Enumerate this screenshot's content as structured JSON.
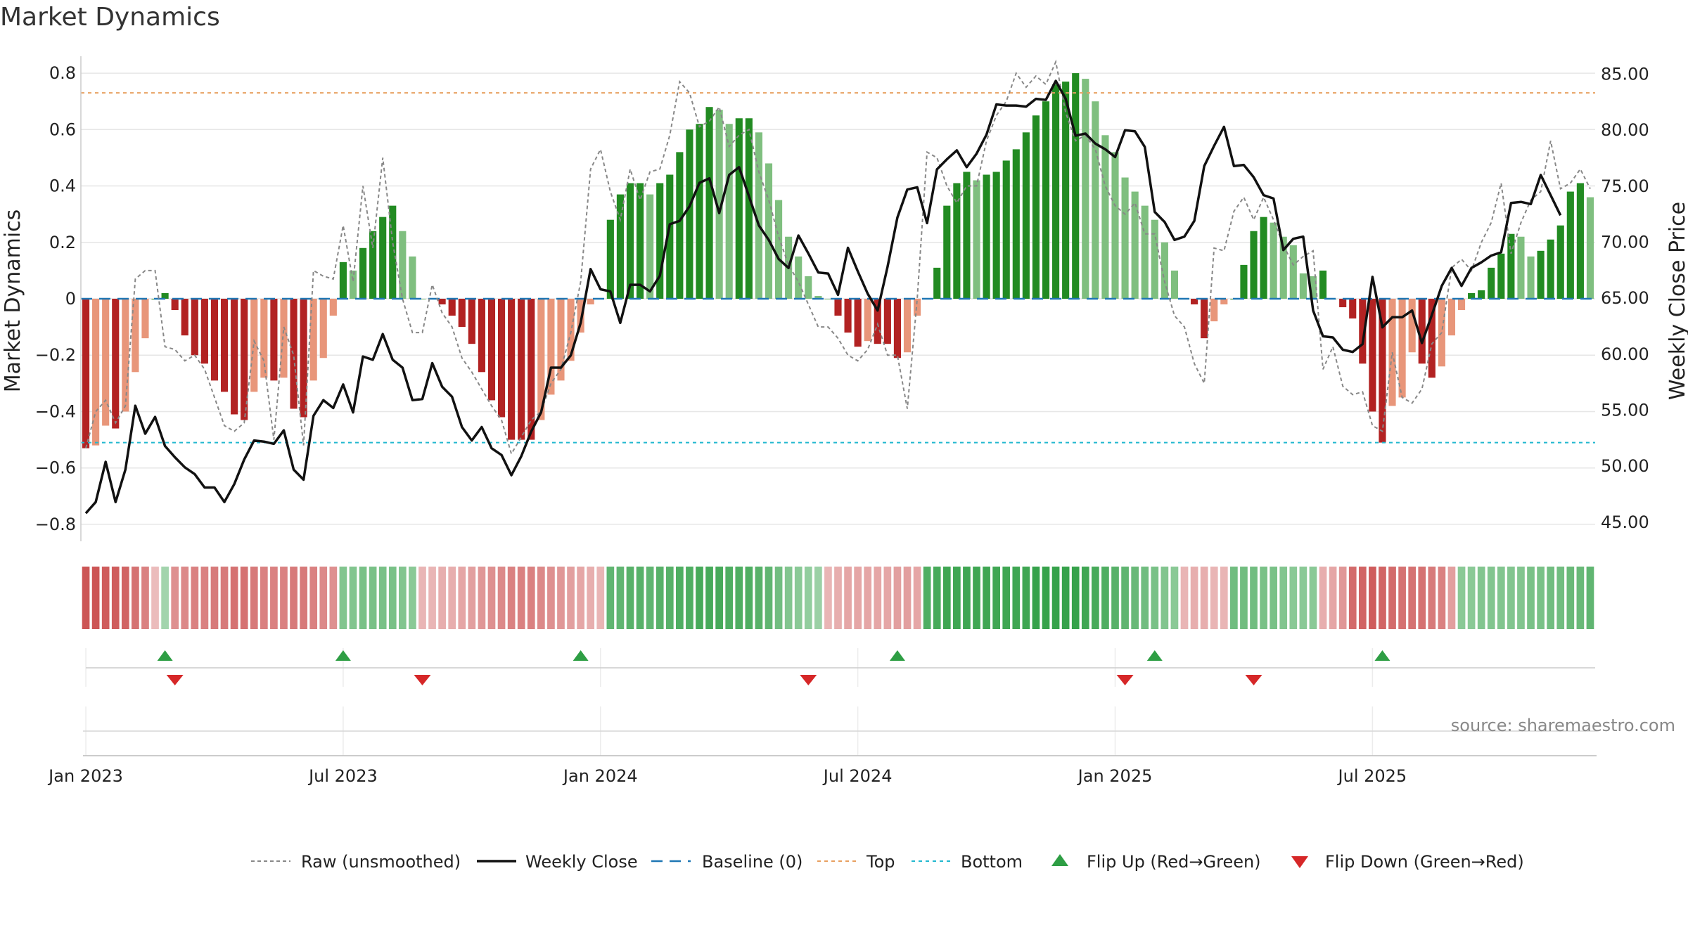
{
  "chart_data": {
    "type": "bar",
    "title": "Market Dynamics",
    "ylabel": "Market Dynamics",
    "y2label": "Weekly Close Price",
    "source": "source: sharemaestro.com",
    "ylim": [
      -0.86,
      0.86
    ],
    "y2lim": [
      43.3,
      86.6
    ],
    "yticks": [
      "0.8",
      "0.6",
      "0.4",
      "0.2",
      "0",
      "−0.2",
      "−0.4",
      "−0.6",
      "−0.8"
    ],
    "ytick_values": [
      0.8,
      0.6,
      0.4,
      0.2,
      0,
      -0.2,
      -0.4,
      -0.6,
      -0.8
    ],
    "y2ticks": [
      "85.00",
      "80.00",
      "75.00",
      "70.00",
      "65.00",
      "60.00",
      "55.00",
      "50.00",
      "45.00"
    ],
    "y2tick_values": [
      85,
      80,
      75,
      70,
      65,
      60,
      55,
      50,
      45
    ],
    "xticks": [
      "Jan 2023",
      "Jul 2023",
      "Jan 2024",
      "Jul 2024",
      "Jan 2025",
      "Jul 2025"
    ],
    "xtick_weeks": [
      1,
      27,
      53,
      79,
      105,
      131
    ],
    "top_line": 0.73,
    "bottom_line": -0.51,
    "grid": true,
    "legend_position": "bottom",
    "legend": [
      {
        "label": "Raw (unsmoothed)",
        "style": "dotted-gray"
      },
      {
        "label": "Weekly Close",
        "style": "solid-black"
      },
      {
        "label": "Baseline (0)",
        "style": "dashed-blue"
      },
      {
        "label": "Top",
        "style": "dotted-orange"
      },
      {
        "label": "Bottom",
        "style": "dotted-cyan"
      },
      {
        "label": "Flip Up (Red→Green)",
        "style": "triangle-up-green"
      },
      {
        "label": "Flip Down (Green→Red)",
        "style": "triangle-down-red"
      }
    ],
    "colors": {
      "strong_green": "#228b22",
      "light_green": "#7fbf7f",
      "strong_red": "#b22222",
      "light_red": "#e8967a",
      "top": "#e8a060",
      "bottom": "#22b8cf",
      "baseline": "#1f77b4",
      "close": "#111111",
      "raw": "#888888",
      "flip_up": "#2e9e44",
      "flip_down": "#d62728"
    },
    "values": [
      -0.53,
      -0.52,
      -0.45,
      -0.46,
      -0.4,
      -0.26,
      -0.14,
      0.0,
      0.02,
      -0.04,
      -0.13,
      -0.2,
      -0.23,
      -0.29,
      -0.33,
      -0.41,
      -0.43,
      -0.33,
      -0.28,
      -0.29,
      -0.28,
      -0.39,
      -0.42,
      -0.29,
      -0.21,
      -0.06,
      0.13,
      0.1,
      0.18,
      0.24,
      0.29,
      0.33,
      0.24,
      0.15,
      0.0,
      0.0,
      -0.02,
      -0.06,
      -0.1,
      -0.16,
      -0.26,
      -0.36,
      -0.42,
      -0.5,
      -0.5,
      -0.5,
      -0.43,
      -0.34,
      -0.29,
      -0.22,
      -0.12,
      -0.02,
      0.0,
      0.28,
      0.37,
      0.41,
      0.41,
      0.37,
      0.41,
      0.44,
      0.52,
      0.6,
      0.62,
      0.68,
      0.67,
      0.62,
      0.64,
      0.64,
      0.59,
      0.48,
      0.35,
      0.22,
      0.15,
      0.08,
      0.01,
      0.0,
      -0.06,
      -0.12,
      -0.17,
      -0.15,
      -0.16,
      -0.16,
      -0.21,
      -0.19,
      -0.06,
      0.0,
      0.11,
      0.33,
      0.41,
      0.45,
      0.42,
      0.44,
      0.45,
      0.49,
      0.53,
      0.59,
      0.65,
      0.7,
      0.76,
      0.77,
      0.8,
      0.78,
      0.7,
      0.58,
      0.52,
      0.43,
      0.38,
      0.33,
      0.28,
      0.2,
      0.1,
      0.0,
      -0.02,
      -0.14,
      -0.08,
      -0.02,
      0.0,
      0.12,
      0.24,
      0.29,
      0.27,
      0.22,
      0.19,
      0.09,
      0.08,
      0.1,
      0.0,
      -0.03,
      -0.07,
      -0.23,
      -0.4,
      -0.51,
      -0.38,
      -0.35,
      -0.19,
      -0.23,
      -0.28,
      -0.24,
      -0.13,
      -0.04,
      0.02,
      0.03,
      0.11,
      0.16,
      0.23,
      0.22,
      0.15,
      0.17,
      0.21,
      0.26,
      0.38,
      0.41,
      0.36
    ],
    "weekly_close": [
      45.8,
      46.8,
      50.4,
      46.8,
      49.7,
      55.4,
      52.9,
      54.4,
      51.8,
      50.8,
      49.9,
      49.3,
      48.1,
      48.1,
      46.8,
      48.4,
      50.6,
      52.3,
      52.2,
      52.0,
      53.2,
      49.7,
      48.8,
      54.5,
      55.9,
      55.2,
      57.3,
      54.8,
      59.8,
      59.5,
      61.8,
      59.5,
      58.8,
      55.9,
      56.0,
      59.2,
      57.1,
      56.2,
      53.5,
      52.3,
      53.5,
      51.6,
      51.0,
      49.2,
      50.9,
      53.1,
      54.8,
      58.8,
      58.8,
      59.9,
      62.8,
      67.6,
      65.8,
      65.6,
      62.8,
      66.2,
      66.2,
      65.6,
      67.0,
      71.6,
      71.9,
      73.2,
      75.3,
      75.7,
      72.6,
      76.0,
      76.7,
      74.1,
      71.5,
      70.2,
      68.5,
      67.7,
      70.6,
      69.0,
      67.3,
      67.2,
      65.3,
      69.5,
      67.4,
      65.4,
      63.9,
      67.8,
      72.2,
      74.7,
      74.9,
      71.7,
      76.5,
      77.4,
      78.2,
      76.7,
      77.9,
      79.6,
      82.3,
      82.2,
      82.2,
      82.1,
      82.8,
      82.7,
      84.4,
      82.8,
      79.5,
      79.7,
      78.8,
      78.3,
      77.6,
      80.0,
      79.9,
      78.5,
      72.7,
      71.8,
      70.2,
      70.5,
      71.9,
      76.8,
      78.6,
      80.3,
      76.8,
      76.9,
      75.8,
      74.2,
      73.9,
      69.3,
      70.3,
      70.5,
      63.9,
      61.6,
      61.5,
      60.4,
      60.2,
      60.9,
      66.9,
      62.4,
      63.3,
      63.3,
      63.9,
      61.0,
      63.5,
      66.1,
      67.7,
      66.1,
      67.7,
      68.2,
      68.8,
      69.1,
      73.5,
      73.6,
      73.4,
      76.0,
      74.2,
      72.4
    ],
    "raw": [
      -0.53,
      -0.4,
      -0.36,
      -0.44,
      -0.38,
      0.07,
      0.1,
      0.1,
      -0.17,
      -0.18,
      -0.22,
      -0.2,
      -0.25,
      -0.35,
      -0.45,
      -0.47,
      -0.44,
      -0.15,
      -0.22,
      -0.5,
      -0.1,
      -0.2,
      -0.52,
      0.1,
      0.08,
      0.07,
      0.26,
      0.06,
      0.4,
      0.18,
      0.5,
      0.2,
      0.0,
      -0.12,
      -0.12,
      0.05,
      -0.05,
      -0.1,
      -0.21,
      -0.26,
      -0.32,
      -0.38,
      -0.43,
      -0.55,
      -0.49,
      -0.43,
      -0.4,
      -0.3,
      -0.25,
      -0.12,
      0.06,
      0.46,
      0.53,
      0.38,
      0.28,
      0.46,
      0.35,
      0.45,
      0.46,
      0.58,
      0.77,
      0.73,
      0.61,
      0.63,
      0.68,
      0.54,
      0.58,
      0.6,
      0.45,
      0.35,
      0.22,
      0.12,
      0.06,
      -0.02,
      -0.1,
      -0.1,
      -0.14,
      -0.2,
      -0.22,
      -0.18,
      -0.09,
      -0.2,
      -0.2,
      -0.39,
      0.0,
      0.52,
      0.5,
      0.4,
      0.34,
      0.4,
      0.4,
      0.56,
      0.65,
      0.7,
      0.8,
      0.75,
      0.79,
      0.76,
      0.84,
      0.66,
      0.56,
      0.58,
      0.53,
      0.4,
      0.33,
      0.3,
      0.34,
      0.23,
      0.23,
      0.06,
      -0.06,
      -0.1,
      -0.23,
      -0.3,
      0.18,
      0.17,
      0.31,
      0.36,
      0.28,
      0.36,
      0.28,
      0.19,
      0.12,
      0.15,
      0.17,
      -0.25,
      -0.17,
      -0.31,
      -0.34,
      -0.33,
      -0.45,
      -0.47,
      -0.19,
      -0.35,
      -0.37,
      -0.32,
      -0.16,
      -0.12,
      0.11,
      0.14,
      0.1,
      0.2,
      0.27,
      0.41,
      0.16,
      0.27,
      0.35,
      0.38,
      0.56,
      0.39,
      0.41,
      0.46,
      0.39
    ],
    "regime": [
      -0.9,
      -0.9,
      -0.85,
      -0.85,
      -0.8,
      -0.7,
      -0.6,
      -0.2,
      0.3,
      -0.5,
      -0.55,
      -0.6,
      -0.6,
      -0.65,
      -0.65,
      -0.7,
      -0.7,
      -0.65,
      -0.6,
      -0.6,
      -0.6,
      -0.65,
      -0.65,
      -0.6,
      -0.55,
      -0.5,
      0.5,
      0.5,
      0.55,
      0.55,
      0.55,
      0.55,
      0.5,
      0.45,
      -0.25,
      -0.25,
      -0.3,
      -0.3,
      -0.35,
      -0.4,
      -0.45,
      -0.5,
      -0.55,
      -0.6,
      -0.6,
      -0.6,
      -0.55,
      -0.5,
      -0.45,
      -0.4,
      -0.35,
      -0.3,
      -0.25,
      0.7,
      0.7,
      0.75,
      0.75,
      0.7,
      0.75,
      0.75,
      0.8,
      0.8,
      0.85,
      0.85,
      0.85,
      0.8,
      0.8,
      0.8,
      0.75,
      0.7,
      0.6,
      0.5,
      0.45,
      0.4,
      0.35,
      -0.25,
      -0.3,
      -0.35,
      -0.35,
      -0.35,
      -0.35,
      -0.35,
      -0.4,
      -0.4,
      -0.35,
      0.8,
      0.85,
      0.9,
      0.9,
      0.9,
      0.9,
      0.9,
      0.9,
      0.9,
      0.9,
      0.9,
      0.95,
      0.95,
      0.95,
      0.95,
      0.95,
      0.9,
      0.85,
      0.8,
      0.75,
      0.7,
      0.65,
      0.6,
      0.55,
      0.5,
      0.45,
      -0.25,
      -0.3,
      -0.3,
      -0.25,
      -0.25,
      0.6,
      0.6,
      0.6,
      0.55,
      0.55,
      0.5,
      0.45,
      0.45,
      0.45,
      -0.3,
      -0.35,
      -0.45,
      -0.75,
      -0.8,
      -0.85,
      -0.8,
      -0.75,
      -0.7,
      -0.7,
      -0.7,
      -0.65,
      -0.6,
      -0.4,
      0.45,
      0.45,
      0.5,
      0.5,
      0.5,
      0.5,
      0.5,
      0.55,
      0.55,
      0.6,
      0.6,
      0.65,
      0.65,
      0.7
    ],
    "flip_up_weeks": [
      9,
      27,
      51,
      83,
      109,
      132
    ],
    "flip_down_weeks": [
      10,
      35,
      74,
      106,
      119
    ]
  }
}
